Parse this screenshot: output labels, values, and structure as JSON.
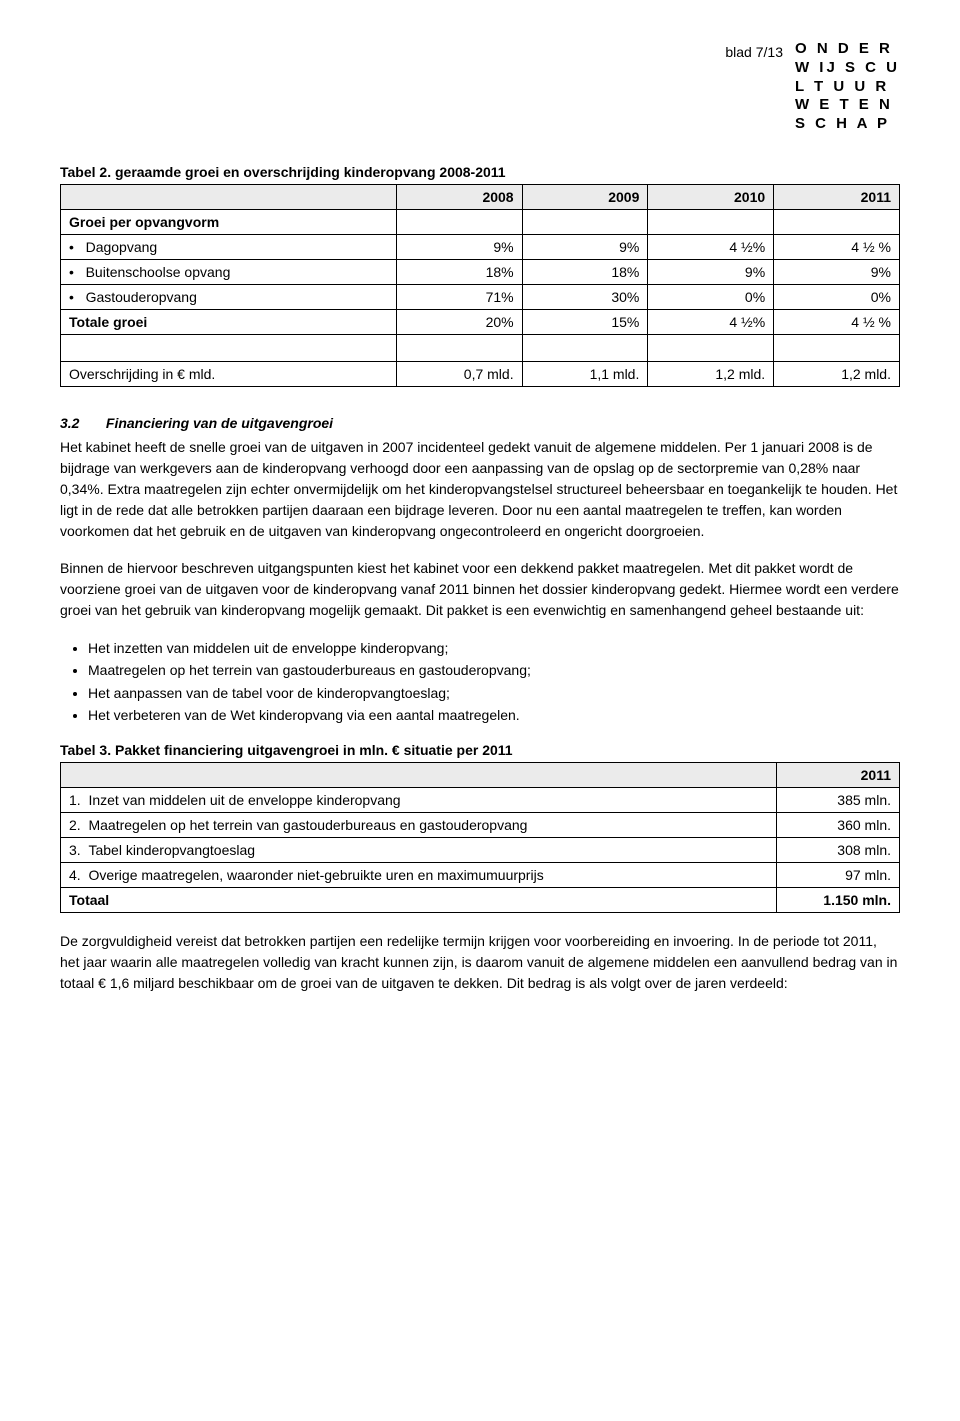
{
  "header": {
    "page_label": "blad 7/13",
    "logo_lines": [
      "O N D E R",
      "W IJ S C U",
      "L T U U R",
      "W E T E N",
      "S C H A P"
    ]
  },
  "table2": {
    "title": "Tabel 2. geraamde groei en overschrijding kinderopvang 2008-2011",
    "years": [
      "2008",
      "2009",
      "2010",
      "2011"
    ],
    "group_label": "Groei per opvangvorm",
    "rows": [
      {
        "label": "Dagopvang",
        "bullet": "•",
        "cells": [
          "9%",
          "9%",
          "4 ½%",
          "4 ½ %"
        ]
      },
      {
        "label": "Buitenschoolse opvang",
        "bullet": "•",
        "cells": [
          "18%",
          "18%",
          "9%",
          "9%"
        ]
      },
      {
        "label": "Gastouderopvang",
        "bullet": "•",
        "cells": [
          "71%",
          "30%",
          "0%",
          "0%"
        ]
      }
    ],
    "total_row": {
      "label": "Totale groei",
      "cells": [
        "20%",
        "15%",
        "4 ½%",
        "4 ½ %"
      ]
    },
    "overs_row": {
      "label": "Overschrijding in € mld.",
      "cells": [
        "0,7 mld.",
        "1,1 mld.",
        "1,2 mld.",
        "1,2 mld."
      ]
    }
  },
  "section32": {
    "num": "3.2",
    "title": "Financiering van de uitgavengroei",
    "para1": "Het kabinet heeft de snelle groei van de uitgaven in 2007 incidenteel gedekt vanuit de algemene middelen. Per 1 januari 2008 is de bijdrage van werkgevers aan de kinderopvang verhoogd door een aanpassing van de opslag op de sectorpremie van 0,28% naar 0,34%. Extra maatregelen zijn echter onvermijdelijk om het kinderopvangstelsel structureel beheersbaar en toegankelijk te houden. Het ligt in de rede dat alle betrokken partijen daaraan een bijdrage leveren. Door nu een aantal maatregelen te treffen, kan worden voorkomen dat het gebruik en de uitgaven van kinderopvang ongecontroleerd en ongericht doorgroeien.",
    "para2": "Binnen de hiervoor beschreven uitgangspunten kiest het kabinet voor een dekkend pakket maatregelen. Met dit pakket wordt de voorziene groei van de uitgaven voor de kinderopvang vanaf 2011 binnen het dossier kinderopvang gedekt. Hiermee wordt een verdere groei van het gebruik van kinderopvang mogelijk gemaakt. Dit pakket is een evenwichtig en samenhangend geheel bestaande uit:",
    "bullets": [
      "Het inzetten van middelen uit de enveloppe kinderopvang;",
      "Maatregelen op het terrein van gastouderbureaus en gastouderopvang;",
      "Het aanpassen van de tabel voor de kinderopvangtoeslag;",
      "Het verbeteren van de Wet kinderopvang via een aantal maatregelen."
    ]
  },
  "table3": {
    "title": "Tabel 3. Pakket financiering uitgavengroei in mln. € situatie per 2011",
    "col_year": "2011",
    "rows": [
      {
        "num": "1.",
        "label": "Inzet van middelen uit de enveloppe kinderopvang",
        "val": "385 mln."
      },
      {
        "num": "2.",
        "label": "Maatregelen op het terrein van gastouderbureaus en gastouderopvang",
        "val": "360 mln."
      },
      {
        "num": "3.",
        "label": "Tabel kinderopvangtoeslag",
        "val": "308 mln."
      },
      {
        "num": "4.",
        "label": "Overige maatregelen, waaronder niet-gebruikte uren en maximumuurprijs",
        "val": "97 mln."
      }
    ],
    "total": {
      "label": "Totaal",
      "val": "1.150 mln."
    }
  },
  "closing": {
    "para": "De zorgvuldigheid vereist dat betrokken partijen een redelijke termijn krijgen voor voorbereiding en invoering. In de periode tot 2011, het jaar waarin alle maatregelen volledig van kracht kunnen zijn, is daarom vanuit de algemene middelen een aanvullend bedrag van in totaal € 1,6 miljard beschikbaar om de groei van de uitgaven te dekken. Dit bedrag is als volgt over de jaren verdeeld:"
  }
}
